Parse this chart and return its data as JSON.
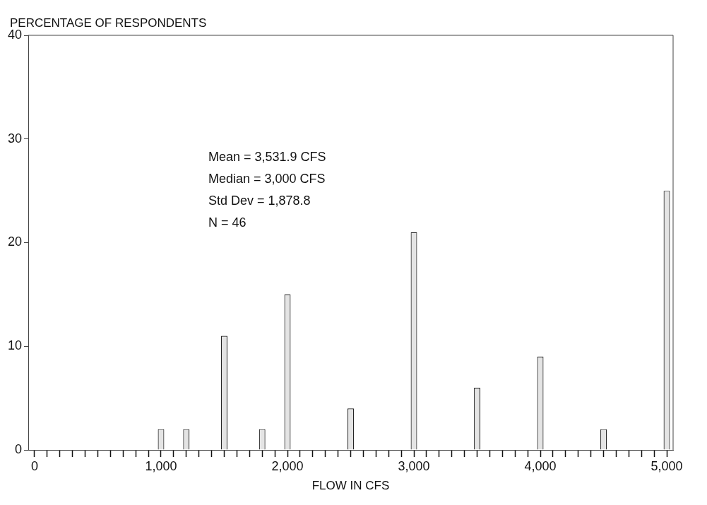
{
  "chart_data": {
    "type": "bar",
    "ylabel": "PERCENTAGE OF RESPONDENTS",
    "xlabel": "FLOW IN CFS",
    "x": [
      1000,
      1200,
      1500,
      1800,
      2000,
      2500,
      3000,
      3500,
      4000,
      4500,
      5000
    ],
    "values": [
      2,
      2,
      11,
      2,
      15,
      4,
      21,
      6,
      9,
      2,
      25
    ],
    "color": "#e4e4e4",
    "xlim": [
      -50,
      5050
    ],
    "ylim": [
      0,
      40
    ],
    "yticks": [
      0,
      10,
      20,
      30,
      40
    ],
    "xticks": [
      0,
      {
        "value": 100,
        "label": null
      },
      {
        "value": 200,
        "label": null
      },
      {
        "value": 300,
        "label": null
      },
      {
        "value": 400,
        "label": null
      },
      {
        "value": 500,
        "label": null
      },
      {
        "value": 600,
        "label": null
      },
      {
        "value": 700,
        "label": null
      },
      {
        "value": 800,
        "label": null
      },
      {
        "value": 900,
        "label": null
      },
      {
        "value": 1000,
        "label": "1,000"
      },
      {
        "value": 1100,
        "label": null
      },
      {
        "value": 1200,
        "label": null
      },
      {
        "value": 1300,
        "label": null
      },
      {
        "value": 1400,
        "label": null
      },
      {
        "value": 1500,
        "label": null
      },
      {
        "value": 1600,
        "label": null
      },
      {
        "value": 1700,
        "label": null
      },
      {
        "value": 1800,
        "label": null
      },
      {
        "value": 1900,
        "label": null
      },
      {
        "value": 2000,
        "label": "2,000"
      },
      {
        "value": 2100,
        "label": null
      },
      {
        "value": 2200,
        "label": null
      },
      {
        "value": 2300,
        "label": null
      },
      {
        "value": 2400,
        "label": null
      },
      {
        "value": 2500,
        "label": null
      },
      {
        "value": 2600,
        "label": null
      },
      {
        "value": 2700,
        "label": null
      },
      {
        "value": 2800,
        "label": null
      },
      {
        "value": 2900,
        "label": null
      },
      {
        "value": 3000,
        "label": "3,000"
      },
      {
        "value": 3100,
        "label": null
      },
      {
        "value": 3200,
        "label": null
      },
      {
        "value": 3300,
        "label": null
      },
      {
        "value": 3400,
        "label": null
      },
      {
        "value": 3500,
        "label": null
      },
      {
        "value": 3600,
        "label": null
      },
      {
        "value": 3700,
        "label": null
      },
      {
        "value": 3800,
        "label": null
      },
      {
        "value": 3900,
        "label": null
      },
      {
        "value": 4000,
        "label": "4,000"
      },
      {
        "value": 4100,
        "label": null
      },
      {
        "value": 4200,
        "label": null
      },
      {
        "value": 4300,
        "label": null
      },
      {
        "value": 4400,
        "label": null
      },
      {
        "value": 4500,
        "label": null
      },
      {
        "value": 4600,
        "label": null
      },
      {
        "value": 4700,
        "label": null
      },
      {
        "value": 4800,
        "label": null
      },
      {
        "value": 4900,
        "label": null
      },
      {
        "value": 5000,
        "label": "5,000"
      }
    ],
    "annotations": [
      "Mean = 3,531.9 CFS",
      "Median = 3,000 CFS",
      "Std Dev = 1,878.8",
      "N = 46"
    ]
  }
}
